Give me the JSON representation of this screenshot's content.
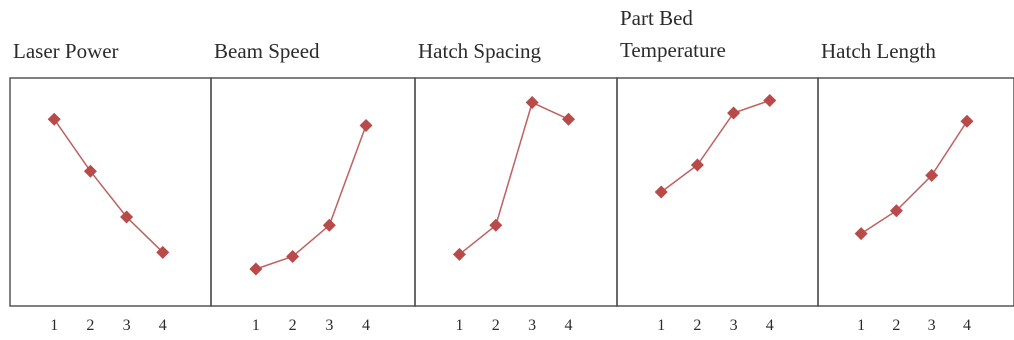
{
  "chart_data": {
    "type": "line",
    "x_categories": [
      "1",
      "2",
      "3",
      "4"
    ],
    "ylim": [
      0,
      100
    ],
    "grid": false,
    "panels": [
      {
        "title_lines": [
          "Laser Power"
        ],
        "values": [
          85,
          60,
          38,
          21
        ]
      },
      {
        "title_lines": [
          "Beam Speed"
        ],
        "values": [
          13,
          19,
          34,
          82
        ]
      },
      {
        "title_lines": [
          "Hatch Spacing"
        ],
        "values": [
          20,
          34,
          93,
          85
        ]
      },
      {
        "title_lines": [
          "Part Bed",
          "Temperature"
        ],
        "values": [
          50,
          63,
          88,
          94
        ]
      },
      {
        "title_lines": [
          "Hatch Length"
        ],
        "values": [
          30,
          41,
          58,
          84
        ]
      }
    ],
    "colors": {
      "line": "#c06060",
      "marker": "#b84a4a",
      "frame": "#4a4a4a"
    },
    "marker": "diamond"
  }
}
